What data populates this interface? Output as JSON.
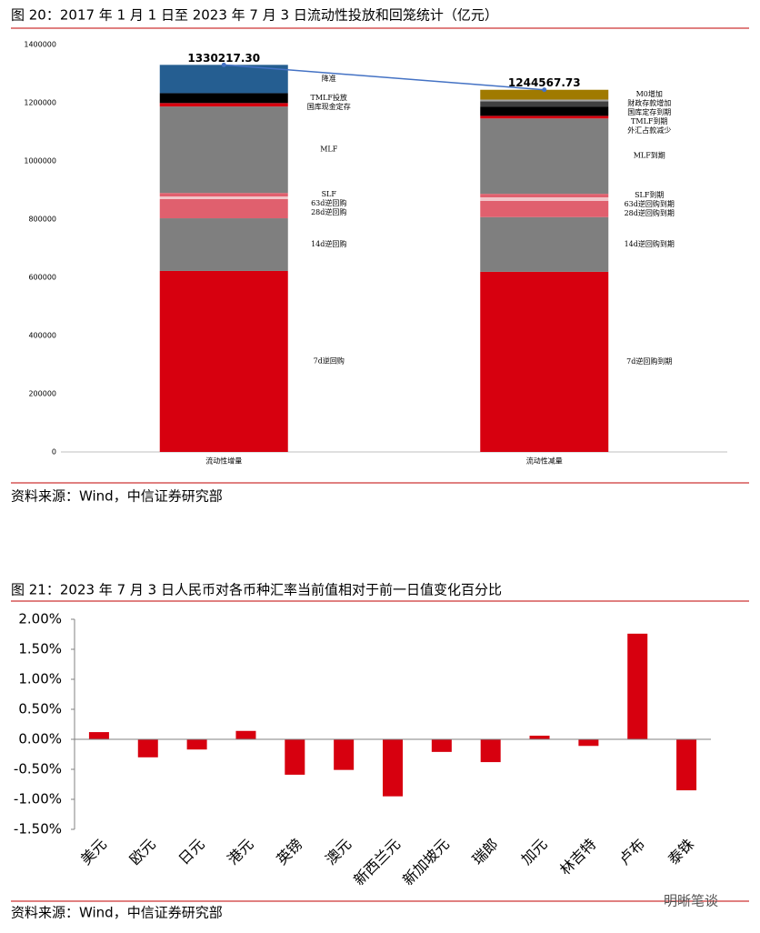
{
  "chart_data": [
    {
      "type": "stacked-bar",
      "title": "图 20：2017 年 1 月 1 日至 2023 年 7 月 3 日流动性投放和回笼统计（亿元）",
      "categories": [
        "流动性增量",
        "流动性减量"
      ],
      "stacks": [
        [
          {
            "name": "7d逆回购",
            "color": "#d7000f",
            "value": 622000
          },
          {
            "name": "14d逆回购",
            "color": "#7f7f7f",
            "value": 181000
          },
          {
            "name": "28d逆回购",
            "color": "#e0606e",
            "value": 66000
          },
          {
            "name": "63d逆回购",
            "color": "#f2c4c8",
            "value": 9000
          },
          {
            "name": "SLF",
            "color": "#e0606e",
            "value": 12000
          },
          {
            "name": "MLF",
            "color": "#7f7f7f",
            "value": 297000
          },
          {
            "name": "国库现金定存",
            "color": "#d7000f",
            "value": 12000
          },
          {
            "name": "TMLF投放",
            "color": "#000000",
            "value": 34000
          },
          {
            "name": "降准",
            "color": "#255e91",
            "value": 97217.3
          }
        ],
        [
          {
            "name": "7d逆回购到期",
            "color": "#d7000f",
            "value": 619000
          },
          {
            "name": "14d逆回购到期",
            "color": "#7f7f7f",
            "value": 188000
          },
          {
            "name": "28d逆回购到期",
            "color": "#e0606e",
            "value": 56000
          },
          {
            "name": "63d逆回购到期",
            "color": "#f2c4c8",
            "value": 12000
          },
          {
            "name": "SLF到期",
            "color": "#e0606e",
            "value": 12000
          },
          {
            "name": "MLF到期",
            "color": "#7f7f7f",
            "value": 259000
          },
          {
            "name": "外汇占款减少",
            "color": "#d7000f",
            "value": 9000
          },
          {
            "name": "TMLF到期",
            "color": "#000000",
            "value": 31000
          },
          {
            "name": "国库定存到期",
            "color": "#404040",
            "value": 19000
          },
          {
            "name": "财政存款增加",
            "color": "#a5a5a5",
            "value": 6000
          },
          {
            "name": "M0增加",
            "color": "#a07a00",
            "value": 33567.73
          }
        ]
      ],
      "totals": [
        1330217.3,
        1244567.73
      ],
      "total_labels": [
        "1330217.30",
        "1244567.73"
      ],
      "total_line_color": "#4472c4",
      "ylim": [
        0,
        1400000
      ],
      "yticks": [
        0,
        200000,
        400000,
        600000,
        800000,
        1000000,
        1200000,
        1400000
      ],
      "source": "资料来源：Wind，中信证券研究部"
    },
    {
      "type": "bar",
      "title": "图 21：2023 年 7 月 3 日人民币对各币种汇率当前值相对于前一日值变化百分比",
      "categories": [
        "美元",
        "欧元",
        "日元",
        "港元",
        "英镑",
        "澳元",
        "新西兰元",
        "新加坡元",
        "瑞郎",
        "加元",
        "林吉特",
        "卢布",
        "泰铢"
      ],
      "values": [
        0.12,
        -0.3,
        -0.17,
        0.14,
        -0.59,
        -0.51,
        -0.95,
        -0.21,
        -0.38,
        0.06,
        -0.11,
        1.76,
        -0.85
      ],
      "color": "#d7000f",
      "ylim": [
        -1.5,
        2
      ],
      "yticks": [
        {
          "value": -1.5,
          "label": "-1.50%"
        },
        {
          "value": -1,
          "label": "-1.00%"
        },
        {
          "value": -0.5,
          "label": "-0.50%"
        },
        {
          "value": 0,
          "label": "0.00%"
        },
        {
          "value": 0.5,
          "label": "0.50%"
        },
        {
          "value": 1,
          "label": "1.00%"
        },
        {
          "value": 1.5,
          "label": "1.50%"
        },
        {
          "value": 2,
          "label": "2.00%"
        }
      ],
      "source": "资料来源：Wind，中信证券研究部"
    }
  ],
  "watermark": "明晰笔谈"
}
